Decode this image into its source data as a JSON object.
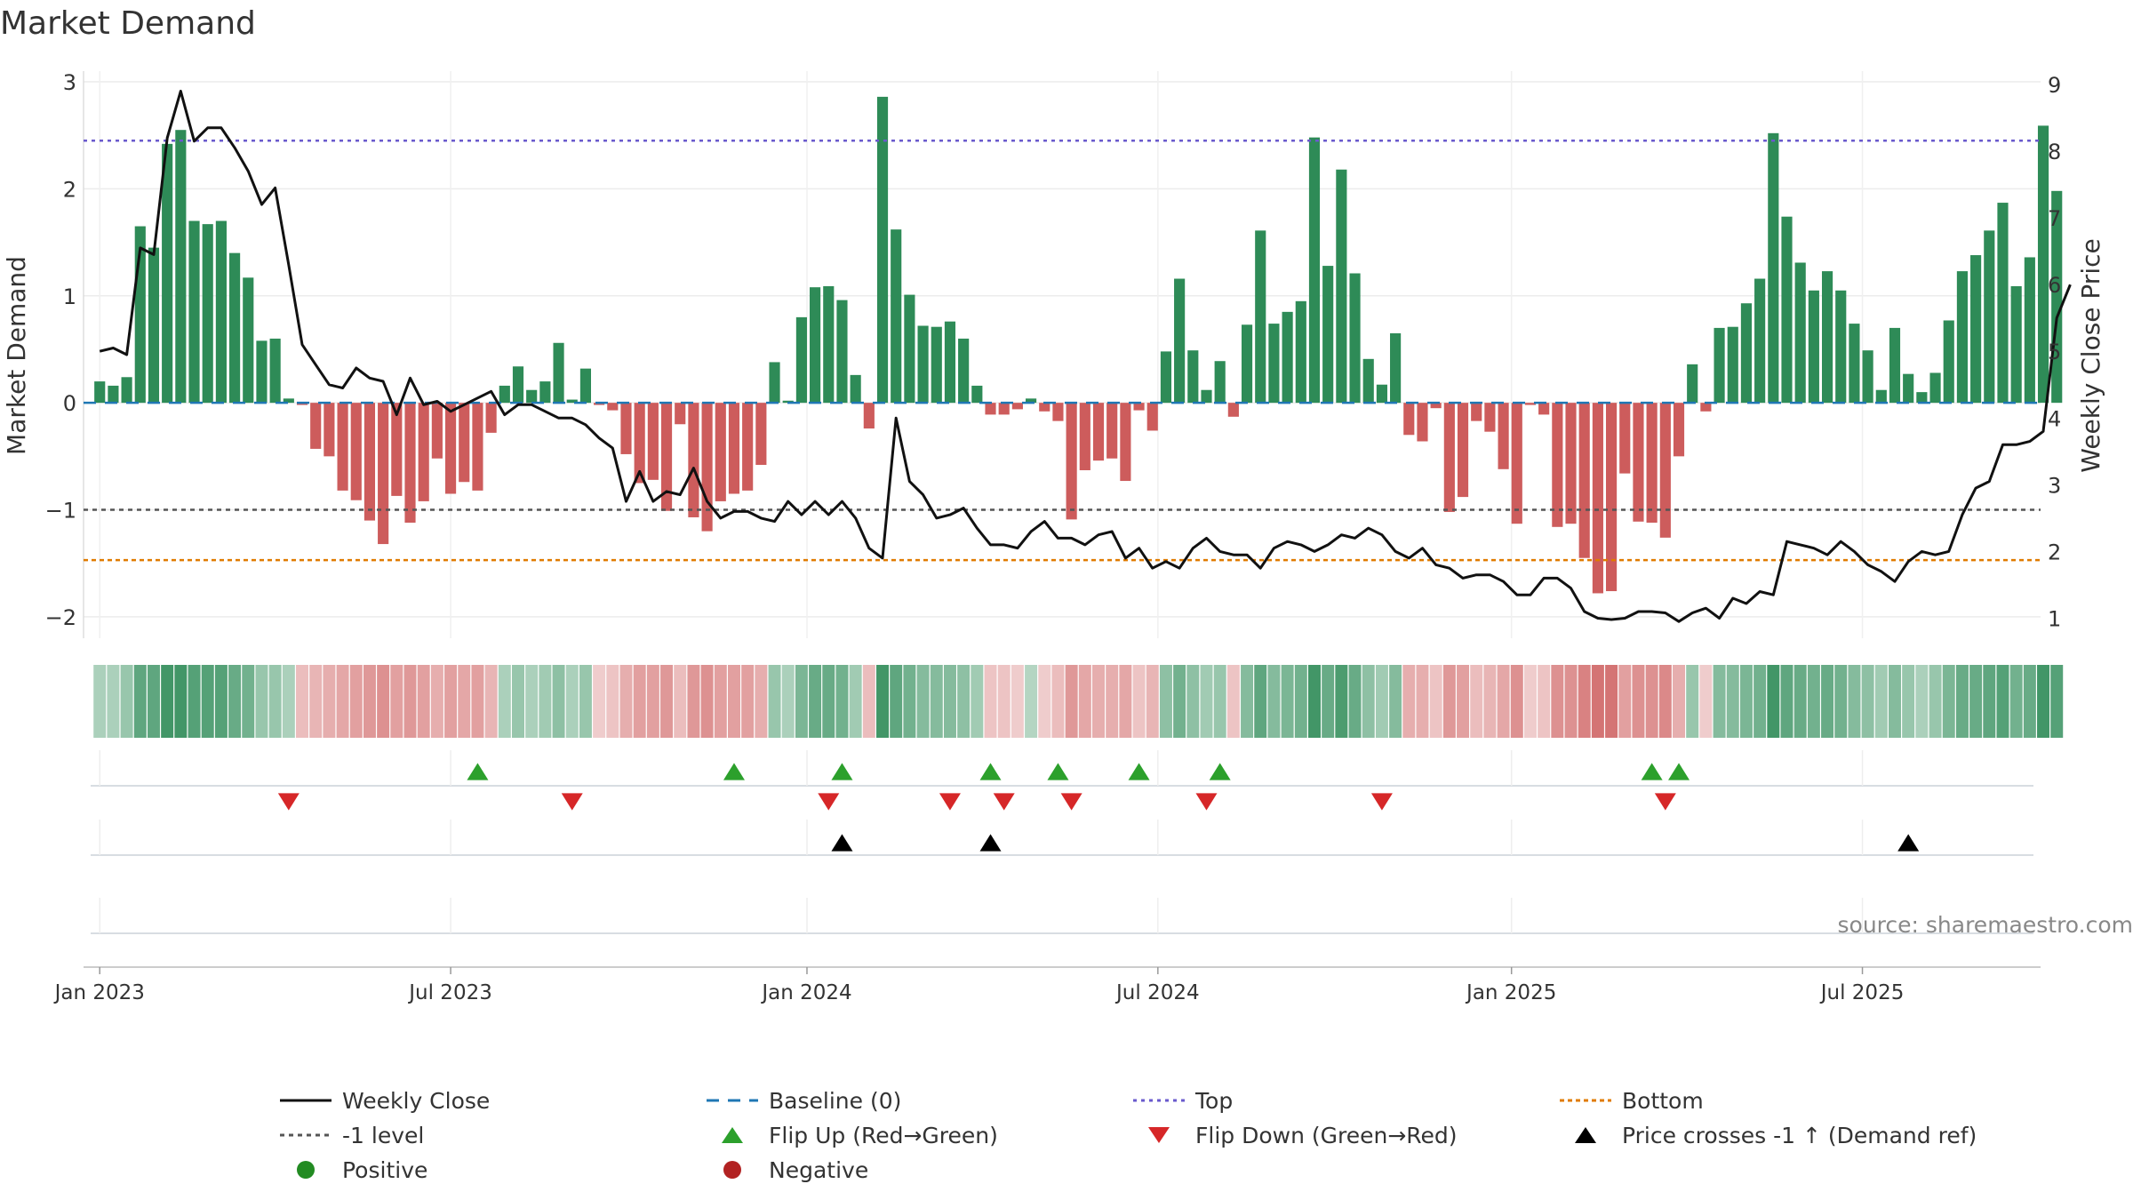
{
  "chart_data": {
    "type": "bar",
    "title": "Market Demand",
    "ylabel": "Market Demand",
    "y2label": "Weekly Close Price",
    "ylim": [
      -2.2,
      3.1
    ],
    "y2lim": [
      0.7,
      9.2
    ],
    "yticks": [
      {
        "v": 3,
        "label": "3"
      },
      {
        "v": 2,
        "label": "2"
      },
      {
        "v": 1,
        "label": "1"
      },
      {
        "v": 0,
        "label": "0"
      },
      {
        "v": -1,
        "label": "−1"
      },
      {
        "v": -2,
        "label": "−2"
      }
    ],
    "y2ticks": [
      {
        "v": 9,
        "label": "9"
      },
      {
        "v": 8,
        "label": "8"
      },
      {
        "v": 7,
        "label": "7"
      },
      {
        "v": 6,
        "label": "6"
      },
      {
        "v": 5,
        "label": "5"
      },
      {
        "v": 4,
        "label": "4"
      },
      {
        "v": 3,
        "label": "3"
      },
      {
        "v": 2,
        "label": "2"
      },
      {
        "v": 1,
        "label": "1"
      }
    ],
    "xlim": [
      -1.2,
      143.8
    ],
    "xticks": [
      {
        "week": 0,
        "label": "Jan 2023"
      },
      {
        "week": 26,
        "label": "Jul 2023"
      },
      {
        "week": 52.4,
        "label": "Jan 2024"
      },
      {
        "week": 78.4,
        "label": "Jul 2024"
      },
      {
        "week": 104.6,
        "label": "Jan 2025"
      },
      {
        "week": 130.6,
        "label": "Jul 2025"
      }
    ],
    "levels": {
      "top": 2.45,
      "minus_one": -1,
      "bottom": -1.47,
      "baseline": 0
    },
    "demand": [
      0.2,
      0.16,
      0.24,
      1.65,
      1.45,
      2.42,
      2.55,
      1.7,
      1.67,
      1.7,
      1.4,
      1.17,
      0.58,
      0.6,
      0.04,
      -0.02,
      -0.43,
      -0.5,
      -0.82,
      -0.91,
      -1.1,
      -1.32,
      -0.87,
      -1.12,
      -0.92,
      -0.52,
      -0.85,
      -0.74,
      -0.82,
      -0.28,
      0.16,
      0.34,
      0.12,
      0.2,
      0.56,
      0.03,
      0.32,
      -0.02,
      -0.07,
      -0.48,
      -0.75,
      -0.72,
      -1.01,
      -0.2,
      -1.07,
      -1.2,
      -0.92,
      -0.85,
      -0.82,
      -0.58,
      0.38,
      0.02,
      0.8,
      1.08,
      1.09,
      0.96,
      0.26,
      -0.24,
      2.86,
      1.62,
      1.01,
      0.72,
      0.71,
      0.76,
      0.6,
      0.16,
      -0.11,
      -0.11,
      -0.06,
      0.04,
      -0.08,
      -0.17,
      -1.09,
      -0.63,
      -0.54,
      -0.52,
      -0.73,
      -0.07,
      -0.26,
      0.48,
      1.16,
      0.49,
      0.12,
      0.39,
      -0.13,
      0.73,
      1.61,
      0.74,
      0.85,
      0.95,
      2.48,
      1.28,
      2.18,
      1.21,
      0.41,
      0.17,
      0.65,
      -0.3,
      -0.36,
      -0.05,
      -1.02,
      -0.88,
      -0.17,
      -0.27,
      -0.62,
      -1.13,
      -0.02,
      -0.11,
      -1.16,
      -1.13,
      -1.45,
      -1.78,
      -1.76,
      -0.66,
      -1.11,
      -1.12,
      -1.26,
      -0.5,
      0.36,
      -0.08,
      0.7,
      0.71,
      0.93,
      1.16,
      2.52,
      1.74,
      1.31,
      1.05,
      1.23,
      1.05,
      0.74,
      0.49,
      0.12,
      0.7,
      0.27,
      0.1,
      0.28,
      0.77,
      1.23,
      1.38,
      1.61,
      1.87,
      1.09,
      1.36,
      2.59,
      1.98
    ],
    "price": [
      5.0,
      5.05,
      4.95,
      6.55,
      6.45,
      8.2,
      8.9,
      8.15,
      8.35,
      8.35,
      8.05,
      7.7,
      7.2,
      7.45,
      6.3,
      5.1,
      4.8,
      4.5,
      4.45,
      4.75,
      4.6,
      4.55,
      4.05,
      4.6,
      4.2,
      4.25,
      4.1,
      4.2,
      4.3,
      4.4,
      4.05,
      4.2,
      4.2,
      4.1,
      4.0,
      4.0,
      3.9,
      3.7,
      3.55,
      2.75,
      3.2,
      2.75,
      2.9,
      2.85,
      3.25,
      2.75,
      2.5,
      2.6,
      2.6,
      2.5,
      2.45,
      2.75,
      2.55,
      2.75,
      2.55,
      2.75,
      2.5,
      2.05,
      1.9,
      4.0,
      3.05,
      2.85,
      2.5,
      2.55,
      2.65,
      2.35,
      2.1,
      2.1,
      2.05,
      2.3,
      2.45,
      2.2,
      2.2,
      2.1,
      2.25,
      2.3,
      1.9,
      2.05,
      1.75,
      1.85,
      1.75,
      2.05,
      2.2,
      2.0,
      1.95,
      1.95,
      1.75,
      2.05,
      2.15,
      2.1,
      2.0,
      2.1,
      2.25,
      2.2,
      2.35,
      2.25,
      2.0,
      1.9,
      2.05,
      1.8,
      1.75,
      1.6,
      1.65,
      1.65,
      1.55,
      1.35,
      1.35,
      1.6,
      1.6,
      1.45,
      1.1,
      1.0,
      0.98,
      1.0,
      1.1,
      1.1,
      1.08,
      0.95,
      1.08,
      1.15,
      1.0,
      1.3,
      1.22,
      1.4,
      1.35,
      2.15,
      2.1,
      2.05,
      1.95,
      2.15,
      2.0,
      1.8,
      1.7,
      1.55,
      1.85,
      2.0,
      1.95,
      2.0,
      2.55,
      2.95,
      3.05,
      3.6,
      3.6,
      3.65,
      3.8,
      5.5,
      6.0
    ],
    "heat_alpha": [
      0.45,
      0.45,
      0.55,
      0.85,
      0.85,
      1,
      1,
      0.9,
      0.9,
      0.9,
      0.8,
      0.75,
      0.55,
      0.55,
      0.45,
      0.45,
      0.5,
      0.55,
      0.6,
      0.65,
      0.7,
      0.75,
      0.65,
      0.7,
      0.65,
      0.55,
      0.65,
      0.6,
      0.65,
      0.5,
      0.45,
      0.55,
      0.45,
      0.5,
      0.6,
      0.45,
      0.55,
      0.35,
      0.4,
      0.55,
      0.65,
      0.65,
      0.7,
      0.45,
      0.7,
      0.75,
      0.65,
      0.65,
      0.65,
      0.55,
      0.55,
      0.45,
      0.7,
      0.8,
      0.8,
      0.75,
      0.5,
      0.45,
      1,
      0.85,
      0.75,
      0.65,
      0.65,
      0.65,
      0.6,
      0.5,
      0.4,
      0.4,
      0.35,
      0.4,
      0.35,
      0.45,
      0.7,
      0.6,
      0.55,
      0.55,
      0.6,
      0.4,
      0.5,
      0.6,
      0.75,
      0.6,
      0.5,
      0.55,
      0.4,
      0.65,
      0.85,
      0.65,
      0.7,
      0.75,
      1,
      0.8,
      0.95,
      0.8,
      0.6,
      0.5,
      0.65,
      0.55,
      0.55,
      0.4,
      0.7,
      0.65,
      0.45,
      0.5,
      0.6,
      0.75,
      0.35,
      0.4,
      0.75,
      0.75,
      0.85,
      0.95,
      0.95,
      0.65,
      0.75,
      0.75,
      0.8,
      0.55,
      0.55,
      0.35,
      0.65,
      0.65,
      0.7,
      0.75,
      1,
      0.85,
      0.8,
      0.75,
      0.8,
      0.75,
      0.65,
      0.6,
      0.5,
      0.65,
      0.55,
      0.45,
      0.55,
      0.7,
      0.8,
      0.8,
      0.85,
      0.9,
      0.75,
      0.8,
      1,
      0.9
    ],
    "flip_up_weeks": [
      28,
      47,
      55,
      66,
      71,
      77,
      83,
      115,
      117
    ],
    "flip_down_weeks": [
      14,
      35,
      54,
      63,
      67,
      72,
      82,
      95,
      116
    ],
    "price_cross_weeks": [
      55,
      66,
      134
    ],
    "legend_position": "bottom",
    "colors": {
      "positive": "#2e8b57",
      "negative": "#cd5c5c",
      "price_line": "#111111",
      "baseline": "#1f77b4",
      "top": "#6a5acd",
      "minus_one": "#555555",
      "bottom": "#e07b00",
      "flip_up": "#2ca02c",
      "flip_down": "#d62728",
      "cross": "#000000",
      "legend_positive": "#228b22",
      "legend_negative": "#b22222"
    },
    "legend": [
      {
        "key": "close",
        "label": "Weekly Close"
      },
      {
        "key": "baseline",
        "label": "Baseline (0)"
      },
      {
        "key": "top",
        "label": "Top"
      },
      {
        "key": "bottom",
        "label": "Bottom"
      },
      {
        "key": "minus_one",
        "label": "-1 level"
      },
      {
        "key": "flip_up",
        "label": "Flip Up (Red→Green)"
      },
      {
        "key": "flip_down",
        "label": "Flip Down (Green→Red)"
      },
      {
        "key": "cross",
        "label": "Price crosses -1 ↑ (Demand ref)"
      },
      {
        "key": "positive",
        "label": "Positive"
      },
      {
        "key": "negative",
        "label": "Negative"
      }
    ],
    "source_label": "source: sharemaestro.com"
  }
}
